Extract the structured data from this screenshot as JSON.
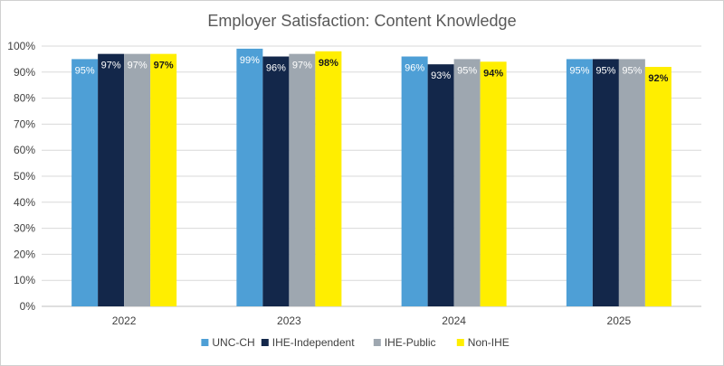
{
  "chart_data": {
    "type": "bar",
    "title": "Employer Satisfaction: Content Knowledge",
    "categories": [
      "2022",
      "2023",
      "2024",
      "2025"
    ],
    "ylim": [
      0,
      100
    ],
    "yticks": [
      "0%",
      "10%",
      "20%",
      "30%",
      "40%",
      "50%",
      "60%",
      "70%",
      "80%",
      "90%",
      "100%"
    ],
    "grid": true,
    "legend_position": "bottom",
    "series": [
      {
        "name": "UNC-CH",
        "color": "#4e9fd6",
        "label_color": "#ffffff",
        "values": [
          95,
          99,
          96,
          95
        ],
        "labels": [
          "95%",
          "99%",
          "96%",
          "95%"
        ]
      },
      {
        "name": "IHE-Independent",
        "color": "#13274a",
        "label_color": "#ffffff",
        "values": [
          97,
          96,
          93,
          95
        ],
        "labels": [
          "97%",
          "96%",
          "93%",
          "95%"
        ]
      },
      {
        "name": "IHE-Public",
        "color": "#9ea7b0",
        "label_color": "#ffffff",
        "values": [
          97,
          97,
          95,
          95
        ],
        "labels": [
          "97%",
          "97%",
          "95%",
          "95%"
        ]
      },
      {
        "name": "Non-IHE",
        "color": "#ffee00",
        "label_color": "#1a1a1a",
        "values": [
          97,
          98,
          94,
          92
        ],
        "labels": [
          "97%",
          "98%",
          "94%",
          "92%"
        ]
      }
    ]
  }
}
